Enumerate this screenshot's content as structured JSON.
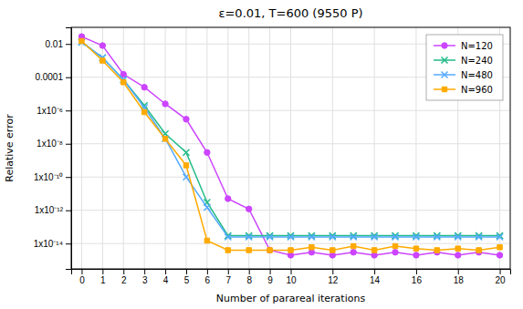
{
  "chart_data": {
    "type": "line",
    "title": "ε=0.01, T=600 (9550 P)",
    "x_label": "Number of parareal iterations",
    "y_label": "Relative error",
    "x": [
      0,
      1,
      2,
      3,
      4,
      5,
      6,
      7,
      8,
      9,
      10,
      11,
      12,
      13,
      14,
      15,
      16,
      17,
      18,
      19,
      20
    ],
    "series": [
      {
        "name": "N=120",
        "color": "#cc44ff",
        "marker": "circle",
        "values": [
          0.028,
          0.008,
          0.00015,
          2.5e-05,
          2.5e-06,
          3e-07,
          3e-09,
          5e-12,
          1.2e-12,
          4e-15,
          2e-15,
          3e-15,
          2e-15,
          3e-15,
          2e-15,
          3e-15,
          2e-15,
          3e-15,
          2e-15,
          3e-15,
          2e-15
        ]
      },
      {
        "name": "N=240",
        "color": "#22bb88",
        "marker": "x",
        "values": [
          0.013,
          0.0015,
          7e-05,
          2e-06,
          4e-08,
          3e-09,
          3e-12,
          3e-14,
          3e-14,
          3e-14,
          3e-14,
          3e-14,
          3e-14,
          3e-14,
          3e-14,
          3e-14,
          3e-14,
          3e-14,
          3e-14,
          3e-14,
          3e-14
        ]
      },
      {
        "name": "N=480",
        "color": "#55aaff",
        "marker": "x",
        "values": [
          0.013,
          0.0015,
          7e-05,
          1.5e-06,
          2e-08,
          1e-10,
          1.5e-12,
          2.5e-14,
          2.5e-14,
          2.5e-14,
          2.5e-14,
          2.5e-14,
          2.5e-14,
          2.5e-14,
          2.5e-14,
          2.5e-14,
          2.5e-14,
          2.5e-14,
          2.5e-14,
          2.5e-14,
          2.5e-14
        ]
      },
      {
        "name": "N=960",
        "color": "#ffaa00",
        "marker": "square",
        "values": [
          0.015,
          0.001,
          5e-05,
          8e-07,
          2e-08,
          5e-10,
          1.5e-14,
          4e-15,
          4e-15,
          4e-15,
          4e-15,
          6e-15,
          4e-15,
          7e-15,
          4e-15,
          7e-15,
          5e-15,
          4e-15,
          5e-15,
          4e-15,
          6e-15
        ]
      }
    ],
    "xlim": [
      -0.5,
      20.5
    ],
    "ylim": [
      3e-16,
      0.1
    ],
    "xticks": [
      0,
      1,
      2,
      3,
      4,
      5,
      6,
      7,
      8,
      9,
      10,
      12,
      14,
      16,
      18,
      20
    ],
    "yticks": [
      0.01,
      0.0001,
      {
        "value": 1e-06,
        "label": "1x10⁻⁶"
      },
      {
        "value": 1e-08,
        "label": "1x10⁻⁸"
      },
      {
        "value": 1e-10,
        "label": "1x10⁻¹⁰"
      },
      {
        "value": 1e-12,
        "label": "1x10⁻¹²"
      },
      {
        "value": 1e-14,
        "label": "1x10⁻¹⁴"
      }
    ],
    "log": "y",
    "grid": true,
    "legend": "upper right"
  }
}
